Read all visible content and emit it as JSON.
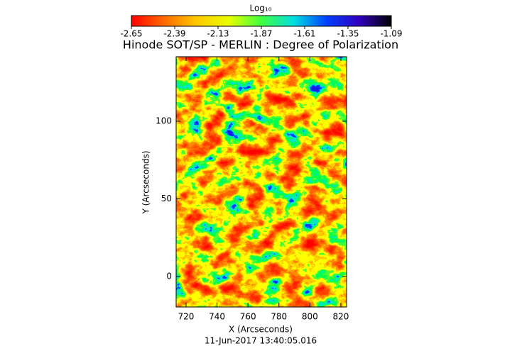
{
  "chart_data": {
    "type": "heatmap",
    "title": "Hinode SOT/SP - MERLIN : Degree of Polarization",
    "x_label": "X (Arcseconds)",
    "y_label": "Y (Arcseconds)",
    "annotation": "11-Jun-2017 13:40:05.016",
    "colorbar_label": "Log₁₀",
    "clim": [
      -2.65,
      -1.09
    ],
    "cticks": [
      -2.65,
      -2.39,
      -2.13,
      -1.87,
      -1.61,
      -1.35,
      -1.09
    ],
    "colorscale": [
      "#ff0000",
      "#ff6a00",
      "#ffc800",
      "#e8ff00",
      "#40ff40",
      "#00e0e0",
      "#0040ff",
      "#3000c0",
      "#000000"
    ],
    "xlim": [
      713.6,
      823.7
    ],
    "xticks": [
      720,
      740,
      760,
      780,
      800,
      820
    ],
    "ylim": [
      -19.6,
      141.5
    ],
    "yticks": [
      0,
      50,
      100
    ]
  }
}
